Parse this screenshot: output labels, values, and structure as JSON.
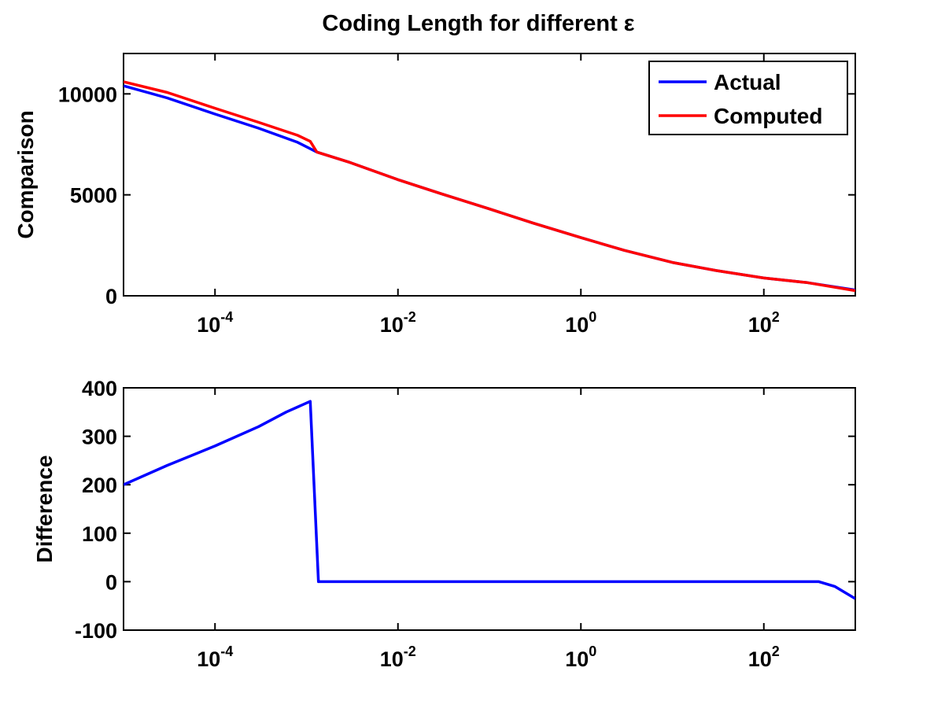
{
  "figure": {
    "title": "Coding Length for different ε"
  },
  "chart_data": [
    {
      "type": "line",
      "title": "Coding Length for different ε",
      "xscale": "log",
      "xlim": [
        1e-05,
        1000
      ],
      "ylim": [
        0,
        12000
      ],
      "xlabel": "",
      "ylabel": "Comparison",
      "xticks": [
        {
          "value": 0.0001,
          "base": "10",
          "exp": "-4"
        },
        {
          "value": 0.01,
          "base": "10",
          "exp": "-2"
        },
        {
          "value": 1,
          "base": "10",
          "exp": "0"
        },
        {
          "value": 100,
          "base": "10",
          "exp": "2"
        }
      ],
      "yticks": [
        {
          "value": 0,
          "label": "0"
        },
        {
          "value": 5000,
          "label": "5000"
        },
        {
          "value": 10000,
          "label": "10000"
        }
      ],
      "grid": false,
      "legend": {
        "position": "top-right",
        "entries": [
          "Actual",
          "Computed"
        ]
      },
      "series": [
        {
          "name": "Actual",
          "color": "#0000ff",
          "x": [
            1e-05,
            3e-05,
            0.0001,
            0.0003,
            0.0008,
            0.0013,
            0.003,
            0.01,
            0.03,
            0.1,
            0.3,
            1,
            3,
            10,
            30,
            100,
            300,
            1000
          ],
          "y": [
            10400,
            9800,
            9000,
            8300,
            7600,
            7120,
            6600,
            5750,
            5050,
            4300,
            3600,
            2880,
            2250,
            1650,
            1250,
            880,
            650,
            290
          ]
        },
        {
          "name": "Computed",
          "color": "#ff0000",
          "x": [
            1e-05,
            3e-05,
            0.0001,
            0.0003,
            0.0008,
            0.0011,
            0.0013,
            0.003,
            0.01,
            0.03,
            0.1,
            0.3,
            1,
            3,
            10,
            30,
            100,
            300,
            1000
          ],
          "y": [
            10600,
            10070,
            9290,
            8590,
            7950,
            7650,
            7120,
            6600,
            5750,
            5050,
            4300,
            3600,
            2880,
            2250,
            1650,
            1250,
            880,
            650,
            255
          ]
        }
      ]
    },
    {
      "type": "line",
      "xscale": "log",
      "xlim": [
        1e-05,
        1000
      ],
      "ylim": [
        -100,
        400
      ],
      "xlabel": "",
      "ylabel": "Difference",
      "xticks": [
        {
          "value": 0.0001,
          "base": "10",
          "exp": "-4"
        },
        {
          "value": 0.01,
          "base": "10",
          "exp": "-2"
        },
        {
          "value": 1,
          "base": "10",
          "exp": "0"
        },
        {
          "value": 100,
          "base": "10",
          "exp": "2"
        }
      ],
      "yticks": [
        {
          "value": -100,
          "label": "-100"
        },
        {
          "value": 0,
          "label": "0"
        },
        {
          "value": 100,
          "label": "100"
        },
        {
          "value": 200,
          "label": "200"
        },
        {
          "value": 300,
          "label": "300"
        },
        {
          "value": 400,
          "label": "400"
        }
      ],
      "grid": false,
      "series": [
        {
          "color": "#0000ff",
          "x": [
            1e-05,
            3e-05,
            0.0001,
            0.0003,
            0.0006,
            0.0011,
            0.00135,
            0.003,
            0.01,
            0.1,
            1,
            10,
            100,
            400,
            600,
            1000
          ],
          "y": [
            200,
            240,
            280,
            320,
            350,
            372,
            0,
            0,
            0,
            0,
            0,
            0,
            0,
            0,
            -10,
            -35
          ]
        }
      ]
    }
  ]
}
